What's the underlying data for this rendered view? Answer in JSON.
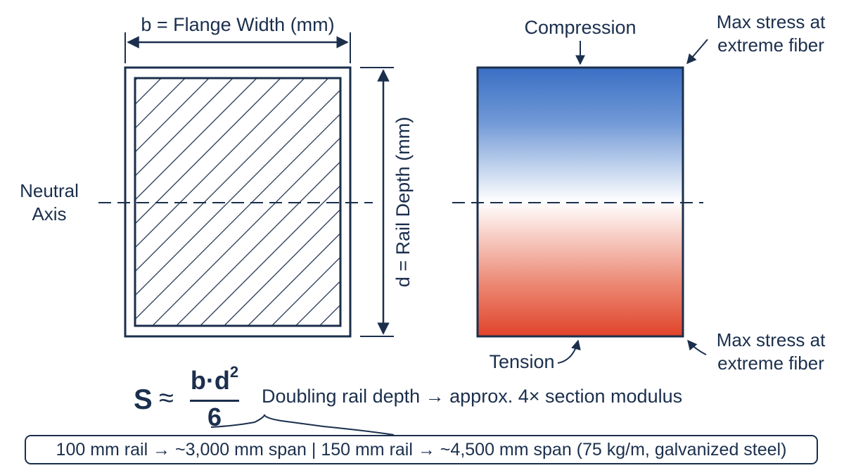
{
  "left_section": {
    "width_label": "b = Flange Width (mm)",
    "depth_label": "d = Rail Depth (mm)",
    "neutral_axis_label": [
      "Neutral",
      "Axis"
    ]
  },
  "stress_diagram": {
    "compression_label": "Compression",
    "tension_label": "Tension",
    "max_stress_top": [
      "Max stress at",
      "extreme fiber"
    ],
    "max_stress_bottom": [
      "Max stress at",
      "extreme fiber"
    ],
    "colors": {
      "compression": "#3a6fc4",
      "tension": "#e0432a",
      "outline": "#1b2f4d"
    }
  },
  "formula": {
    "lhs": "S",
    "approx": "≈",
    "numerator": "b·d",
    "exponent": "2",
    "denominator": "6",
    "note": "Doubling rail depth → approx. 4× section modulus"
  },
  "info_box": {
    "text": "100 mm rail → ~3,000 mm span | 150 mm rail → ~4,500 mm span (75 kg/m, galvanized steel)"
  }
}
